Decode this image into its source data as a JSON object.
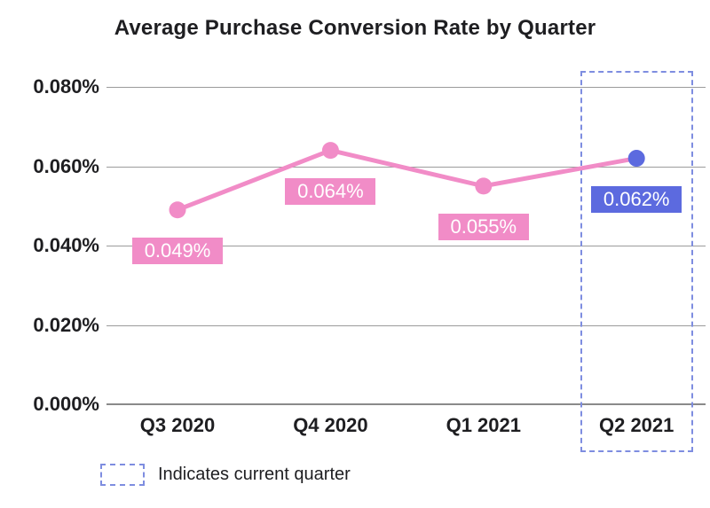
{
  "chart_data": {
    "type": "line",
    "title": "Average Purchase Conversion Rate by Quarter",
    "categories": [
      "Q3 2020",
      "Q4 2020",
      "Q1 2021",
      "Q2 2021"
    ],
    "series": [
      {
        "name": "Average Purchase Conversion Rate",
        "values": [
          0.049,
          0.064,
          0.055,
          0.062
        ],
        "unit": "%"
      }
    ],
    "value_labels": [
      "0.049%",
      "0.064%",
      "0.055%",
      "0.062%"
    ],
    "y_ticks": [
      {
        "value": 0.0,
        "label": "0.000%"
      },
      {
        "value": 0.02,
        "label": "0.020%"
      },
      {
        "value": 0.04,
        "label": "0.040%"
      },
      {
        "value": 0.06,
        "label": "0.060%"
      },
      {
        "value": 0.08,
        "label": "0.080%"
      }
    ],
    "ylim": [
      0,
      0.08
    ],
    "grid": true,
    "current_quarter_index": 3,
    "current_quarter_label": "Q2 2021",
    "legend_label": "Indicates current quarter",
    "legend_position": "bottom-left",
    "colors": {
      "series_line": "#f18cc7",
      "series_point": "#f18cc7",
      "value_label_bg": "#f18cc7",
      "current_point": "#5c6adf",
      "current_label_bg": "#5c6adf",
      "current_outline": "#7e8de0",
      "grid_line": "#9b9b9b",
      "axis_line": "#8a8a8a",
      "text": "#1e1e21",
      "value_label_text": "#ffffff"
    }
  }
}
